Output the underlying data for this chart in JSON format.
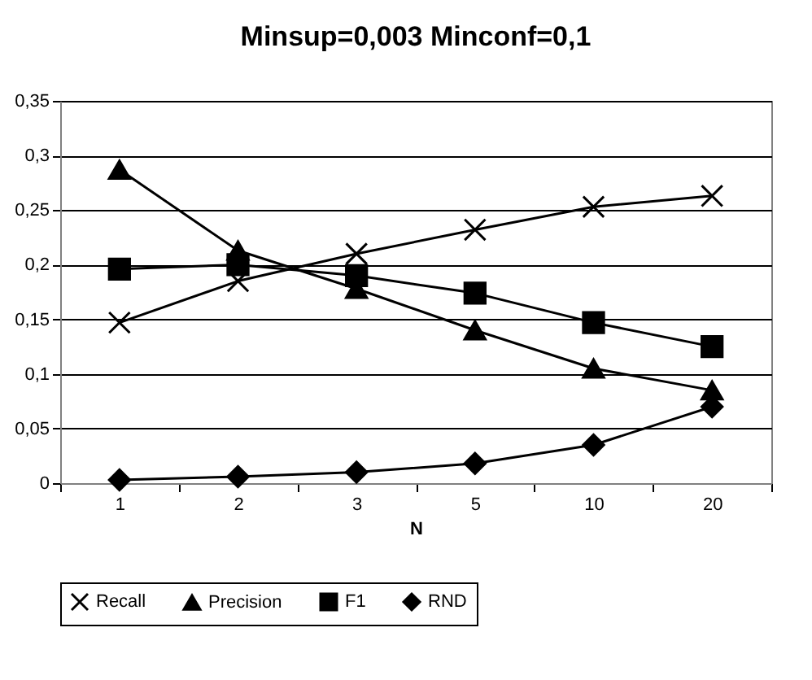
{
  "chart_data": {
    "type": "line",
    "title": "Minsup=0,003 Minconf=0,1",
    "xlabel": "N",
    "categories": [
      "1",
      "2",
      "3",
      "5",
      "10",
      "20"
    ],
    "ylim": [
      0,
      0.35
    ],
    "yticks": [
      {
        "value": 0,
        "label": "0"
      },
      {
        "value": 0.05,
        "label": "0,05"
      },
      {
        "value": 0.1,
        "label": "0,1"
      },
      {
        "value": 0.15,
        "label": "0,15"
      },
      {
        "value": 0.2,
        "label": "0,2"
      },
      {
        "value": 0.25,
        "label": "0,25"
      },
      {
        "value": 0.3,
        "label": "0,3"
      },
      {
        "value": 0.35,
        "label": "0,35"
      }
    ],
    "grid": "y",
    "legend": "bottom",
    "line_style": "solid",
    "series": [
      {
        "name": "Recall",
        "color": "#000000",
        "marker": "cross",
        "values": [
          0.147,
          0.185,
          0.21,
          0.232,
          0.253,
          0.263
        ]
      },
      {
        "name": "Precision",
        "color": "#000000",
        "marker": "triangle",
        "values": [
          0.287,
          0.213,
          0.178,
          0.14,
          0.105,
          0.085
        ]
      },
      {
        "name": "F1",
        "color": "#000000",
        "marker": "square",
        "values": [
          0.196,
          0.2,
          0.19,
          0.174,
          0.147,
          0.125
        ]
      },
      {
        "name": "RND",
        "color": "#000000",
        "marker": "diamond",
        "values": [
          0.003,
          0.006,
          0.01,
          0.018,
          0.035,
          0.07
        ]
      }
    ]
  }
}
